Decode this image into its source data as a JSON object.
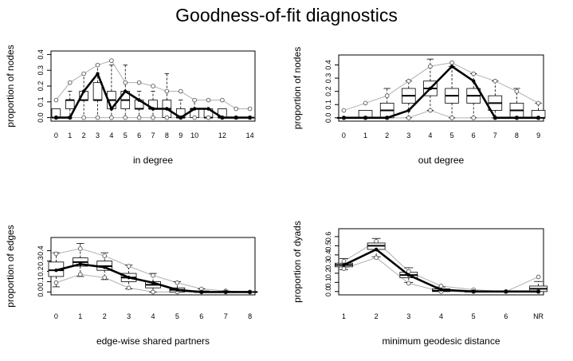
{
  "title": "Goodness-of-fit diagnostics",
  "chart_data": [
    {
      "type": "boxplot",
      "ylabel": "proportion of nodes",
      "xlabel": "in degree",
      "categories": [
        "0",
        "1",
        "2",
        "3",
        "4",
        "5",
        "6",
        "7",
        "8",
        "9",
        "10",
        "11",
        "12",
        "13",
        "14"
      ],
      "x_tick_labels": [
        "0",
        "1",
        "2",
        "3",
        "4",
        "5",
        "6",
        "7",
        "8",
        "9",
        "10",
        "12",
        "14"
      ],
      "ylim": [
        0,
        0.4
      ],
      "y_ticks": [
        "0.0",
        "0.1",
        "0.2",
        "0.3",
        "0.4"
      ],
      "observed": [
        0.0,
        0.0,
        0.167,
        0.278,
        0.056,
        0.167,
        0.111,
        0.056,
        0.056,
        0.0,
        0.056,
        0.056,
        0.0,
        0.0,
        0.0
      ],
      "boxes": [
        {
          "q1": 0.0,
          "median": 0.0,
          "q3": 0.056,
          "lo": 0.0,
          "hi": 0.056
        },
        {
          "q1": 0.056,
          "median": 0.111,
          "q3": 0.111,
          "lo": 0.0,
          "hi": 0.167
        },
        {
          "q1": 0.111,
          "median": 0.111,
          "q3": 0.167,
          "lo": 0.0,
          "hi": 0.278
        },
        {
          "q1": 0.111,
          "median": 0.111,
          "q3": 0.222,
          "lo": 0.0,
          "hi": 0.333
        },
        {
          "q1": 0.056,
          "median": 0.111,
          "q3": 0.167,
          "lo": 0.0,
          "hi": 0.333
        },
        {
          "q1": 0.056,
          "median": 0.111,
          "q3": 0.167,
          "lo": 0.0,
          "hi": 0.333
        },
        {
          "q1": 0.056,
          "median": 0.056,
          "q3": 0.111,
          "lo": 0.0,
          "hi": 0.167
        },
        {
          "q1": 0.056,
          "median": 0.056,
          "q3": 0.111,
          "lo": 0.0,
          "hi": 0.167
        },
        {
          "q1": 0.0,
          "median": 0.056,
          "q3": 0.111,
          "lo": 0.0,
          "hi": 0.278
        },
        {
          "q1": 0.0,
          "median": 0.0,
          "q3": 0.056,
          "lo": 0.0,
          "hi": 0.111
        },
        {
          "q1": 0.0,
          "median": 0.056,
          "q3": 0.056,
          "lo": 0.0,
          "hi": 0.111
        },
        {
          "q1": 0.0,
          "median": 0.0,
          "q3": 0.056,
          "lo": 0.0,
          "hi": 0.056
        },
        {
          "q1": 0.0,
          "median": 0.0,
          "q3": 0.056,
          "lo": 0.0,
          "hi": 0.056
        },
        {
          "q1": 0.0,
          "median": 0.0,
          "q3": 0.0,
          "lo": 0.0,
          "hi": 0.0
        },
        {
          "q1": 0.0,
          "median": 0.0,
          "q3": 0.0,
          "lo": 0.0,
          "hi": 0.0
        }
      ],
      "upper_band": [
        0.111,
        0.222,
        0.278,
        0.333,
        0.361,
        0.222,
        0.222,
        0.2,
        0.167,
        0.167,
        0.111,
        0.111,
        0.111,
        0.056,
        0.056
      ],
      "lower_band": [
        0.0,
        0.0,
        0.0,
        0.0,
        0.0,
        0.0,
        0.0,
        0.0,
        0.0,
        0.0,
        0.0,
        0.0,
        0.0,
        0.0,
        0.0
      ]
    },
    {
      "type": "boxplot",
      "ylabel": "proportion of nodes",
      "xlabel": "out degree",
      "categories": [
        "0",
        "1",
        "2",
        "3",
        "4",
        "5",
        "6",
        "7",
        "8",
        "9"
      ],
      "x_tick_labels": [
        "0",
        "1",
        "2",
        "3",
        "4",
        "5",
        "6",
        "7",
        "8",
        "9"
      ],
      "ylim": [
        0,
        0.45
      ],
      "y_ticks": [
        "0.0",
        "0.1",
        "0.2",
        "0.3",
        "0.4"
      ],
      "observed": [
        0.0,
        0.0,
        0.0,
        0.056,
        0.222,
        0.389,
        0.278,
        0.0,
        0.0,
        0.0
      ],
      "boxes": [
        {
          "q1": 0.0,
          "median": 0.0,
          "q3": 0.0,
          "lo": 0.0,
          "hi": 0.0
        },
        {
          "q1": 0.0,
          "median": 0.0,
          "q3": 0.056,
          "lo": 0.0,
          "hi": 0.056
        },
        {
          "q1": 0.0,
          "median": 0.056,
          "q3": 0.111,
          "lo": 0.0,
          "hi": 0.222
        },
        {
          "q1": 0.111,
          "median": 0.167,
          "q3": 0.222,
          "lo": 0.0,
          "hi": 0.278
        },
        {
          "q1": 0.167,
          "median": 0.222,
          "q3": 0.278,
          "lo": 0.056,
          "hi": 0.444
        },
        {
          "q1": 0.111,
          "median": 0.167,
          "q3": 0.222,
          "lo": 0.0,
          "hi": 0.389
        },
        {
          "q1": 0.111,
          "median": 0.167,
          "q3": 0.222,
          "lo": 0.0,
          "hi": 0.333
        },
        {
          "q1": 0.056,
          "median": 0.111,
          "q3": 0.167,
          "lo": 0.0,
          "hi": 0.278
        },
        {
          "q1": 0.0,
          "median": 0.056,
          "q3": 0.111,
          "lo": 0.0,
          "hi": 0.222
        },
        {
          "q1": 0.0,
          "median": 0.0,
          "q3": 0.056,
          "lo": 0.0,
          "hi": 0.111
        }
      ],
      "upper_band": [
        0.056,
        0.111,
        0.167,
        0.278,
        0.389,
        0.417,
        0.333,
        0.278,
        0.2,
        0.111
      ],
      "lower_band": [
        0.0,
        0.0,
        0.0,
        0.0,
        0.056,
        0.0,
        0.0,
        0.0,
        0.0,
        0.0
      ]
    },
    {
      "type": "boxplot",
      "ylabel": "proportion of edges",
      "xlabel": "edge-wise shared partners",
      "categories": [
        "0",
        "1",
        "2",
        "3",
        "4",
        "5",
        "6",
        "7",
        "8"
      ],
      "x_tick_labels": [
        "0",
        "1",
        "2",
        "3",
        "4",
        "5",
        "6",
        "7",
        "8"
      ],
      "ylim": [
        0,
        0.5
      ],
      "y_ticks": [
        "0.0",
        "0.1",
        "0.2",
        "0.3",
        "0.4"
      ],
      "observed": [
        0.21,
        0.27,
        0.24,
        0.14,
        0.09,
        0.02,
        0.0,
        0.0,
        0.0
      ],
      "boxes": [
        {
          "q1": 0.15,
          "median": 0.21,
          "q3": 0.29,
          "lo": 0.05,
          "hi": 0.38
        },
        {
          "q1": 0.25,
          "median": 0.29,
          "q3": 0.33,
          "lo": 0.15,
          "hi": 0.47
        },
        {
          "q1": 0.21,
          "median": 0.25,
          "q3": 0.3,
          "lo": 0.12,
          "hi": 0.38
        },
        {
          "q1": 0.1,
          "median": 0.14,
          "q3": 0.18,
          "lo": 0.03,
          "hi": 0.26
        },
        {
          "q1": 0.04,
          "median": 0.07,
          "q3": 0.1,
          "lo": 0.0,
          "hi": 0.18
        },
        {
          "q1": 0.0,
          "median": 0.02,
          "q3": 0.04,
          "lo": 0.0,
          "hi": 0.1
        },
        {
          "q1": 0.0,
          "median": 0.0,
          "q3": 0.01,
          "lo": 0.0,
          "hi": 0.03
        },
        {
          "q1": 0.0,
          "median": 0.0,
          "q3": 0.0,
          "lo": 0.0,
          "hi": 0.01
        },
        {
          "q1": 0.0,
          "median": 0.0,
          "q3": 0.0,
          "lo": 0.0,
          "hi": 0.0
        }
      ],
      "upper_band": [
        0.37,
        0.42,
        0.35,
        0.25,
        0.16,
        0.09,
        0.03,
        0.01,
        0.0
      ],
      "lower_band": [
        0.09,
        0.17,
        0.14,
        0.04,
        0.0,
        0.0,
        0.0,
        0.0,
        0.0
      ]
    },
    {
      "type": "boxplot",
      "ylabel": "proportion of dyads",
      "xlabel": "minimum geodesic distance",
      "categories": [
        "1",
        "2",
        "3",
        "4",
        "5",
        "6",
        "NR"
      ],
      "x_tick_labels": [
        "1",
        "2",
        "3",
        "4",
        "5",
        "6",
        "NR"
      ],
      "ylim": [
        0,
        0.65
      ],
      "y_ticks": [
        "0.0",
        "0.1",
        "0.2",
        "0.3",
        "0.4",
        "0.5",
        "0.6"
      ],
      "observed": [
        0.29,
        0.46,
        0.18,
        0.02,
        0.0,
        0.0,
        0.0
      ],
      "boxes": [
        {
          "q1": 0.27,
          "median": 0.29,
          "q3": 0.31,
          "lo": 0.24,
          "hi": 0.36
        },
        {
          "q1": 0.46,
          "median": 0.5,
          "q3": 0.53,
          "lo": 0.38,
          "hi": 0.58
        },
        {
          "q1": 0.15,
          "median": 0.18,
          "q3": 0.21,
          "lo": 0.1,
          "hi": 0.26
        },
        {
          "q1": 0.0,
          "median": 0.01,
          "q3": 0.03,
          "lo": 0.0,
          "hi": 0.05
        },
        {
          "q1": 0.0,
          "median": 0.0,
          "q3": 0.0,
          "lo": 0.0,
          "hi": 0.01
        },
        {
          "q1": 0.0,
          "median": 0.0,
          "q3": 0.0,
          "lo": 0.0,
          "hi": 0.0
        },
        {
          "q1": 0.0,
          "median": 0.03,
          "q3": 0.06,
          "lo": 0.0,
          "hi": 0.11
        }
      ],
      "upper_band": [
        0.33,
        0.55,
        0.22,
        0.06,
        0.02,
        0.0,
        0.16
      ],
      "lower_band": [
        0.25,
        0.37,
        0.09,
        0.0,
        0.0,
        0.0,
        0.0
      ]
    }
  ]
}
